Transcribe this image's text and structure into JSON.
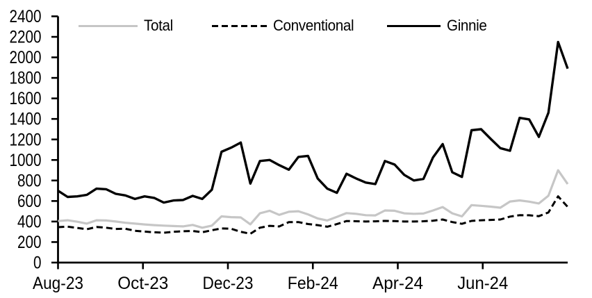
{
  "chart_data": {
    "type": "line",
    "title": "",
    "frequency": "weekly",
    "x_axis": {
      "tick_labels": [
        "Aug-23",
        "Oct-23",
        "Dec-23",
        "Feb-24",
        "Apr-24",
        "Jun-24"
      ],
      "tick_positions_months": [
        0,
        2,
        4,
        6,
        8,
        10
      ],
      "range_months": [
        0,
        12
      ],
      "grid": false
    },
    "y_axis": {
      "min": 0,
      "max": 2400,
      "tick_step": 200,
      "grid": false
    },
    "legend": {
      "position": "top-inside",
      "entries": [
        "Total",
        "Conventional",
        "Ginnie"
      ]
    },
    "series": [
      {
        "name": "Total",
        "color": "#c6c6c6",
        "line_style": "solid",
        "values": [
          405,
          412,
          398,
          380,
          412,
          410,
          400,
          388,
          380,
          372,
          365,
          360,
          356,
          353,
          367,
          340,
          360,
          450,
          443,
          440,
          373,
          480,
          505,
          465,
          495,
          500,
          470,
          430,
          410,
          445,
          482,
          475,
          462,
          460,
          508,
          505,
          480,
          475,
          478,
          508,
          541,
          480,
          450,
          560,
          553,
          545,
          535,
          595,
          606,
          594,
          576,
          652,
          900,
          766
        ]
      },
      {
        "name": "Conventional",
        "color": "#000000",
        "line_style": "dashed",
        "values": [
          345,
          350,
          338,
          325,
          347,
          340,
          328,
          330,
          310,
          302,
          295,
          291,
          300,
          305,
          308,
          296,
          315,
          333,
          330,
          300,
          281,
          340,
          358,
          352,
          394,
          395,
          376,
          365,
          349,
          375,
          405,
          403,
          400,
          402,
          406,
          404,
          400,
          400,
          403,
          408,
          420,
          395,
          378,
          406,
          412,
          416,
          420,
          448,
          462,
          461,
          452,
          489,
          646,
          543
        ]
      },
      {
        "name": "Ginnie",
        "color": "#000000",
        "line_style": "solid",
        "values": [
          700,
          640,
          645,
          660,
          720,
          715,
          670,
          655,
          620,
          645,
          630,
          585,
          605,
          610,
          650,
          620,
          710,
          1080,
          1120,
          1170,
          770,
          990,
          1000,
          950,
          905,
          1030,
          1040,
          820,
          720,
          680,
          865,
          820,
          780,
          765,
          990,
          955,
          855,
          800,
          815,
          1025,
          1155,
          880,
          835,
          1290,
          1300,
          1205,
          1115,
          1090,
          1410,
          1395,
          1225,
          1460,
          2150,
          1890
        ]
      }
    ]
  }
}
